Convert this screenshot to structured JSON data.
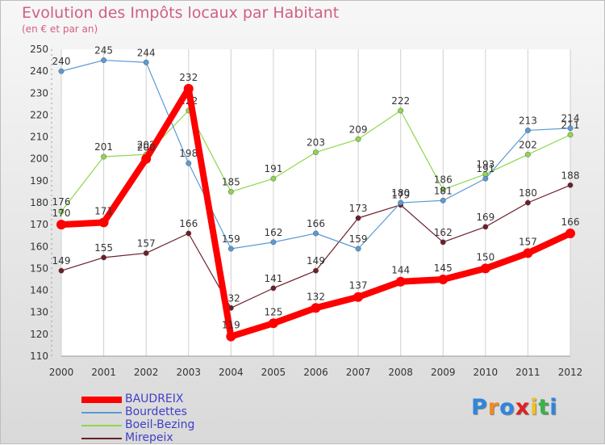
{
  "title": "Evolution des Impôts locaux par Habitant",
  "subtitle": "(en € et par an)",
  "chart_data": {
    "type": "line",
    "title": "Evolution des Impôts locaux par Habitant",
    "subtitle": "(en € et par an)",
    "x": [
      "2000",
      "2001",
      "2002",
      "2003",
      "2004",
      "2005",
      "2006",
      "2007",
      "2008",
      "2009",
      "2010",
      "2011",
      "2012"
    ],
    "ylim": [
      110,
      250
    ],
    "yticks": [
      110,
      120,
      130,
      140,
      150,
      160,
      170,
      180,
      190,
      200,
      210,
      220,
      230,
      240,
      250
    ],
    "grid": "vertical",
    "legend": "bottom-left",
    "series": [
      {
        "name": "BAUDREIX",
        "color": "#ff0000",
        "values": [
          170,
          171,
          200,
          232,
          119,
          125,
          132,
          137,
          144,
          145,
          150,
          157,
          166
        ]
      },
      {
        "name": "Bourdettes",
        "color": "#5a9bd4",
        "values": [
          240,
          245,
          244,
          198,
          159,
          162,
          166,
          159,
          180,
          181,
          191,
          213,
          214
        ]
      },
      {
        "name": "Boeil-Bezing",
        "color": "#8fd64f",
        "values": [
          176,
          201,
          202,
          222,
          185,
          191,
          203,
          209,
          222,
          186,
          193,
          202,
          211
        ]
      },
      {
        "name": "Mirepeix",
        "color": "#6b1f2a",
        "values": [
          149,
          155,
          157,
          166,
          132,
          141,
          149,
          173,
          179,
          162,
          169,
          180,
          188
        ]
      }
    ]
  },
  "logo": {
    "letters": [
      "P",
      "r",
      "o",
      "x",
      "i",
      "t",
      "i"
    ],
    "colors": [
      "#2e86de",
      "#f08a24",
      "#2e86de",
      "#e02020",
      "#f0c020",
      "#3cb04a",
      "#2e86de"
    ]
  }
}
